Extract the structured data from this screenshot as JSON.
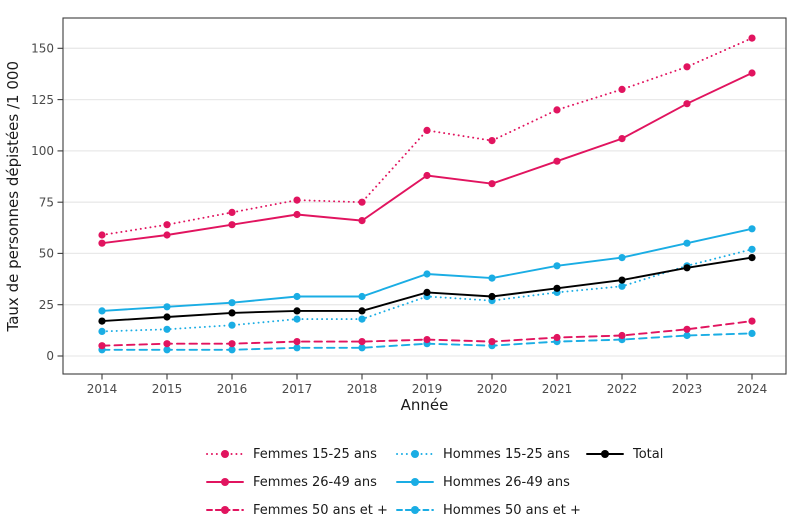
{
  "chart_data": {
    "type": "line",
    "title": "",
    "xlabel": "Année",
    "ylabel": "Taux de personnes dépistées /1 000",
    "x": [
      2014,
      2015,
      2016,
      2017,
      2018,
      2019,
      2020,
      2021,
      2022,
      2023,
      2024
    ],
    "yticks": [
      0,
      25,
      50,
      75,
      100,
      125,
      150
    ],
    "ylim": [
      -9,
      165
    ],
    "xlim": [
      2013.4,
      2024.5
    ],
    "grid": true,
    "legend_position": "bottom",
    "colors": {
      "femmes": "#e1145f",
      "hommes": "#1aade4",
      "total": "#000000",
      "gridline": "#e9e9e9",
      "axis": "#3c3c3c",
      "tick_text": "#4a4a4a"
    },
    "series": [
      {
        "name": "Femmes 15-25 ans",
        "color": "#e1145f",
        "style": "dotted",
        "values": [
          59,
          64,
          70,
          76,
          75,
          110,
          105,
          120,
          130,
          141,
          155
        ]
      },
      {
        "name": "Femmes 26-49 ans",
        "color": "#e1145f",
        "style": "solid",
        "values": [
          55,
          59,
          64,
          69,
          66,
          88,
          84,
          95,
          106,
          123,
          138
        ]
      },
      {
        "name": "Femmes 50 ans et +",
        "color": "#e1145f",
        "style": "dashed",
        "values": [
          5,
          6,
          6,
          7,
          7,
          8,
          7,
          9,
          10,
          13,
          17
        ]
      },
      {
        "name": "Hommes 15-25 ans",
        "color": "#1aade4",
        "style": "dotted",
        "values": [
          12,
          13,
          15,
          18,
          18,
          29,
          27,
          31,
          34,
          44,
          52
        ]
      },
      {
        "name": "Hommes 26-49 ans",
        "color": "#1aade4",
        "style": "solid",
        "values": [
          22,
          24,
          26,
          29,
          29,
          40,
          38,
          44,
          48,
          55,
          62
        ]
      },
      {
        "name": "Hommes 50 ans et +",
        "color": "#1aade4",
        "style": "dashed",
        "values": [
          3,
          3,
          3,
          4,
          4,
          6,
          5,
          7,
          8,
          10,
          11
        ]
      },
      {
        "name": "Total",
        "color": "#000000",
        "style": "solid",
        "values": [
          17,
          19,
          21,
          22,
          22,
          31,
          29,
          33,
          37,
          43,
          48
        ]
      }
    ]
  }
}
